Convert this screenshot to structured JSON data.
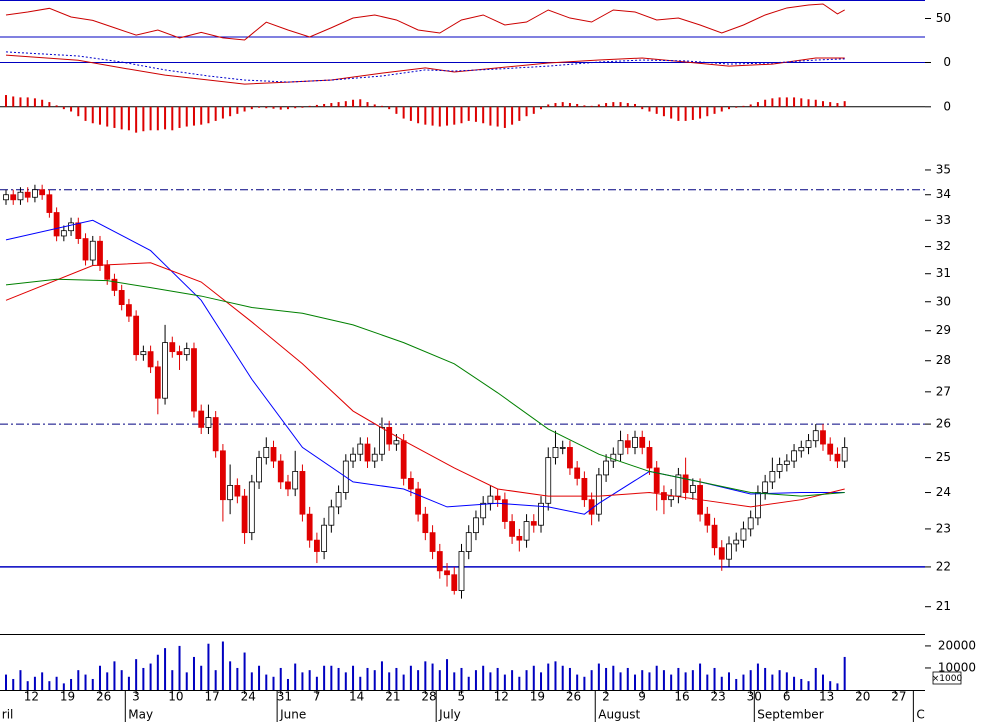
{
  "chart_data": [
    {
      "type": "line",
      "ylim": [
        30,
        70
      ],
      "yticks": [
        50
      ],
      "xlim": [
        -0.83,
        127.11
      ],
      "levels": [
        30,
        70
      ],
      "level_color": "#0000c0",
      "series": [
        {
          "color": "#cc0000",
          "x": [
            0,
            3,
            6,
            9,
            12,
            15,
            18,
            21,
            24,
            27,
            30,
            33,
            36,
            39,
            42,
            45,
            48,
            51,
            54,
            57,
            60,
            63,
            66,
            69,
            72,
            75,
            78,
            81,
            84,
            87,
            90,
            93,
            96,
            99,
            102,
            105,
            108,
            111,
            113,
            115,
            116
          ],
          "values": [
            53.8,
            57,
            61,
            51.6,
            48,
            40,
            32,
            37.6,
            29,
            35,
            29,
            26.8,
            46,
            37.6,
            30,
            40,
            50.5,
            53.8,
            48.4,
            37.6,
            34.3,
            48.4,
            53.8,
            43,
            46.2,
            59.2,
            50.5,
            46.2,
            59.2,
            57,
            48.4,
            50.5,
            43,
            34.3,
            43,
            53.8,
            61.4,
            64.6,
            65.7,
            54.9,
            59.2
          ]
        }
      ]
    },
    {
      "type": "line",
      "ylim": [
        -1,
        1
      ],
      "yticks": [
        0
      ],
      "xlim": [
        -0.83,
        127.11
      ],
      "grid": true,
      "grid_color": "#0000c0",
      "series": [
        {
          "color": "#cc0000",
          "dash": "solid",
          "x": [
            0,
            10,
            16,
            22,
            28,
            33,
            39,
            45,
            52,
            58,
            62,
            68,
            75,
            82,
            88,
            94,
            100,
            106,
            112,
            116
          ],
          "values": [
            0.33,
            0.1,
            -0.24,
            -0.56,
            -0.78,
            -0.96,
            -0.87,
            -0.78,
            -0.47,
            -0.24,
            -0.42,
            -0.24,
            -0.02,
            0.11,
            0.2,
            0.02,
            -0.16,
            -0.07,
            0.2,
            0.2
          ]
        },
        {
          "color": "#0000cc",
          "dash": "dotted",
          "x": [
            0,
            10,
            16,
            22,
            28,
            33,
            39,
            45,
            52,
            58,
            62,
            68,
            75,
            82,
            88,
            94,
            100,
            106,
            112,
            116
          ],
          "values": [
            0.47,
            0.29,
            0.02,
            -0.33,
            -0.6,
            -0.78,
            -0.87,
            -0.78,
            -0.6,
            -0.33,
            -0.38,
            -0.29,
            -0.16,
            0.02,
            0.11,
            0.07,
            -0.07,
            -0.02,
            0.11,
            0.16
          ]
        }
      ]
    },
    {
      "type": "bar",
      "ylim": [
        -0.6,
        0.4
      ],
      "yticks": [
        0
      ],
      "xlim": [
        -0.83,
        127.11
      ],
      "grid": true,
      "grid_color": "#000000",
      "color": "#dd0000",
      "values": [
        0.25,
        0.22,
        0.2,
        0.2,
        0.18,
        0.15,
        0.1,
        0.03,
        -0.05,
        -0.1,
        -0.2,
        -0.3,
        -0.35,
        -0.38,
        -0.42,
        -0.45,
        -0.48,
        -0.5,
        -0.55,
        -0.52,
        -0.5,
        -0.5,
        -0.48,
        -0.5,
        -0.45,
        -0.42,
        -0.4,
        -0.38,
        -0.35,
        -0.3,
        -0.25,
        -0.2,
        -0.15,
        -0.1,
        -0.05,
        -0.02,
        -0.03,
        -0.04,
        -0.06,
        -0.05,
        -0.03,
        -0.02,
        0.02,
        0.04,
        0.06,
        0.08,
        0.1,
        0.12,
        0.15,
        0.16,
        0.1,
        0.05,
        0.02,
        -0.05,
        -0.15,
        -0.25,
        -0.3,
        -0.35,
        -0.38,
        -0.4,
        -0.42,
        -0.4,
        -0.38,
        -0.35,
        -0.3,
        -0.32,
        -0.35,
        -0.4,
        -0.42,
        -0.45,
        -0.38,
        -0.3,
        -0.2,
        -0.15,
        -0.05,
        0.05,
        0.08,
        0.1,
        0.08,
        0.06,
        0.03,
        0.02,
        0.05,
        0.08,
        0.1,
        0.1,
        0.08,
        0.06,
        -0.05,
        -0.1,
        -0.15,
        -0.2,
        -0.25,
        -0.3,
        -0.3,
        -0.28,
        -0.25,
        -0.2,
        -0.15,
        -0.1,
        -0.05,
        -0.02,
        0.02,
        0.05,
        0.1,
        0.15,
        0.18,
        0.2,
        0.2,
        0.2,
        0.18,
        0.16,
        0.15,
        0.12,
        0.1,
        0.08,
        0.12
      ]
    },
    {
      "type": "candlestick",
      "log_scale": true,
      "ylim": [
        20.34,
        35.41
      ],
      "yticks": [
        21,
        22,
        23,
        24,
        25,
        26,
        27,
        28,
        29,
        30,
        31,
        32,
        33,
        34,
        35
      ],
      "xlim": [
        -0.83,
        127.11
      ],
      "up_color": "#ffffff",
      "down_color": "#e00000",
      "open": [
        33.8,
        34.0,
        33.8,
        34.1,
        33.9,
        34.2,
        34.0,
        33.3,
        32.4,
        32.6,
        32.9,
        32.3,
        31.5,
        32.2,
        31.3,
        30.8,
        30.4,
        29.9,
        29.5,
        28.2,
        28.3,
        27.8,
        26.8,
        28.6,
        28.3,
        28.2,
        28.4,
        26.4,
        25.9,
        26.2,
        25.2,
        23.8,
        24.2,
        23.9,
        22.9,
        24.3,
        25.0,
        25.3,
        24.9,
        24.3,
        24.1,
        24.6,
        23.4,
        22.7,
        22.4,
        23.1,
        23.6,
        24.0,
        24.9,
        25.1,
        25.4,
        24.9,
        25.1,
        25.9,
        25.4,
        25.5,
        24.4,
        24.1,
        23.4,
        22.9,
        22.4,
        21.9,
        21.8,
        21.4,
        22.4,
        22.9,
        23.3,
        23.7,
        23.9,
        23.8,
        23.2,
        22.8,
        22.7,
        23.2,
        23.1,
        23.7,
        25.0,
        25.3,
        25.3,
        24.7,
        24.4,
        23.8,
        23.4,
        24.5,
        24.9,
        25.1,
        25.5,
        25.3,
        25.6,
        25.3,
        24.7,
        24.0,
        23.8,
        23.9,
        24.5,
        24.0,
        24.2,
        23.4,
        23.1,
        22.5,
        22.2,
        22.6,
        22.7,
        23.0,
        23.3,
        24.0,
        24.3,
        24.6,
        24.8,
        24.9,
        25.2,
        25.3,
        25.5,
        25.8,
        25.4,
        25.1,
        24.9
      ],
      "high": [
        34.2,
        34.2,
        34.3,
        34.3,
        34.4,
        34.4,
        34.2,
        33.5,
        32.8,
        33.1,
        33.1,
        32.5,
        32.4,
        32.4,
        31.5,
        31.0,
        30.6,
        30.1,
        29.7,
        28.5,
        28.5,
        28.0,
        29.2,
        28.8,
        28.5,
        28.6,
        28.6,
        26.6,
        26.6,
        26.4,
        25.4,
        24.8,
        24.4,
        24.1,
        24.5,
        25.2,
        25.6,
        25.5,
        25.1,
        24.5,
        25.2,
        24.8,
        23.6,
        22.9,
        23.3,
        23.8,
        24.2,
        25.1,
        25.3,
        25.6,
        25.6,
        25.3,
        26.2,
        26.1,
        25.7,
        25.7,
        24.6,
        24.3,
        23.6,
        23.1,
        22.6,
        22.1,
        22.0,
        22.6,
        23.1,
        23.5,
        23.9,
        24.2,
        24.1,
        24.0,
        23.4,
        23.0,
        23.4,
        23.4,
        23.9,
        25.3,
        25.8,
        25.5,
        25.5,
        24.9,
        24.6,
        24.0,
        24.7,
        25.1,
        25.3,
        25.8,
        25.7,
        25.8,
        25.8,
        25.5,
        24.9,
        24.2,
        24.1,
        24.7,
        25.0,
        24.4,
        24.4,
        23.6,
        23.3,
        22.7,
        22.8,
        22.9,
        23.2,
        23.5,
        24.2,
        24.5,
        25.0,
        25.0,
        25.1,
        25.4,
        25.5,
        25.7,
        26.0,
        26.0,
        25.6,
        25.3,
        25.6
      ],
      "low": [
        33.6,
        33.6,
        33.6,
        33.7,
        33.7,
        33.8,
        33.1,
        32.2,
        32.2,
        32.4,
        32.1,
        31.3,
        31.3,
        31.1,
        30.6,
        30.2,
        29.7,
        29.3,
        28.0,
        28.0,
        27.6,
        26.3,
        26.6,
        28.1,
        27.7,
        28.0,
        26.2,
        25.7,
        25.7,
        25.0,
        23.2,
        23.4,
        23.7,
        22.6,
        22.7,
        24.1,
        24.8,
        24.7,
        24.1,
        23.9,
        23.9,
        23.2,
        22.5,
        22.1,
        22.2,
        22.9,
        23.4,
        23.8,
        24.7,
        24.9,
        24.7,
        24.7,
        24.9,
        25.2,
        25.2,
        24.2,
        23.9,
        23.2,
        22.7,
        22.2,
        21.7,
        21.5,
        21.3,
        21.2,
        22.2,
        22.7,
        23.1,
        23.5,
        23.6,
        23.0,
        22.6,
        22.4,
        22.5,
        22.9,
        22.9,
        23.5,
        24.8,
        25.1,
        24.5,
        24.2,
        23.6,
        23.1,
        23.2,
        24.3,
        24.7,
        24.9,
        25.1,
        25.1,
        25.1,
        24.5,
        23.5,
        23.4,
        23.6,
        23.7,
        23.8,
        23.8,
        23.2,
        22.9,
        22.3,
        21.9,
        22.0,
        22.4,
        22.5,
        22.8,
        23.1,
        23.8,
        24.1,
        24.4,
        24.6,
        24.7,
        25.0,
        25.1,
        25.3,
        25.2,
        24.9,
        24.7,
        24.7
      ],
      "close": [
        34.0,
        33.8,
        34.1,
        33.9,
        34.2,
        34.0,
        33.3,
        32.4,
        32.6,
        32.9,
        32.3,
        31.5,
        32.2,
        31.3,
        30.8,
        30.4,
        29.9,
        29.5,
        28.2,
        28.3,
        27.8,
        26.8,
        28.6,
        28.3,
        28.2,
        28.4,
        26.4,
        25.9,
        26.2,
        25.2,
        23.8,
        24.2,
        23.9,
        22.9,
        24.3,
        25.0,
        25.3,
        24.9,
        24.3,
        24.1,
        24.6,
        23.4,
        22.7,
        22.4,
        23.1,
        23.6,
        24.0,
        24.9,
        25.1,
        25.4,
        24.9,
        25.1,
        25.9,
        25.4,
        25.5,
        24.4,
        24.1,
        23.4,
        22.9,
        22.4,
        21.9,
        21.8,
        21.4,
        22.4,
        22.9,
        23.3,
        23.7,
        23.9,
        23.8,
        23.2,
        22.8,
        22.7,
        23.2,
        23.1,
        23.7,
        25.0,
        25.3,
        25.3,
        24.7,
        24.4,
        23.8,
        23.4,
        24.5,
        24.9,
        25.1,
        25.5,
        25.3,
        25.6,
        25.3,
        24.7,
        24.0,
        23.8,
        23.9,
        24.5,
        24.0,
        24.2,
        23.4,
        23.1,
        22.5,
        22.2,
        22.6,
        22.7,
        23.0,
        23.3,
        24.0,
        24.3,
        24.6,
        24.8,
        24.9,
        25.2,
        25.3,
        25.5,
        25.8,
        25.4,
        25.1,
        24.9,
        25.3
      ],
      "series": [
        {
          "color": "#0000ff",
          "x": [
            0,
            12,
            20,
            27,
            34,
            41,
            48,
            55,
            61,
            68,
            75,
            80,
            82,
            89,
            96,
            103,
            110,
            116
          ],
          "values": [
            32.25,
            33.0,
            31.85,
            30.05,
            27.4,
            25.3,
            24.3,
            24.1,
            23.6,
            23.7,
            23.6,
            23.4,
            23.7,
            24.6,
            24.3,
            23.96,
            24.0,
            24.0
          ]
        },
        {
          "color": "#e00000",
          "x": [
            0,
            12,
            20,
            27,
            34,
            41,
            48,
            55,
            62,
            68,
            75,
            82,
            89,
            96,
            103,
            110,
            116
          ],
          "values": [
            30.05,
            31.3,
            31.4,
            30.7,
            29.3,
            27.9,
            26.4,
            25.5,
            24.7,
            24.1,
            23.9,
            23.9,
            24.0,
            23.8,
            23.6,
            23.8,
            24.1
          ]
        },
        {
          "color": "#008000",
          "x": [
            0,
            7,
            14,
            20,
            27,
            34,
            41,
            48,
            55,
            62,
            68,
            75,
            82,
            89,
            96,
            103,
            110,
            116
          ],
          "values": [
            30.6,
            30.8,
            30.75,
            30.5,
            30.2,
            29.8,
            29.6,
            29.2,
            28.6,
            27.9,
            26.97,
            25.85,
            25.1,
            24.6,
            24.3,
            24.0,
            23.9,
            24.0
          ]
        }
      ],
      "hlines": [
        {
          "value": 34.2,
          "style": "dashdot",
          "color": "#000080"
        },
        {
          "value": 26,
          "style": "dashdot",
          "color": "#000080"
        },
        {
          "value": 22,
          "style": "solid",
          "color": "#0000c0"
        }
      ]
    },
    {
      "type": "bar",
      "ylim": [
        0,
        24500
      ],
      "yticks": [
        10000,
        20000
      ],
      "xlim": [
        -0.83,
        127.11
      ],
      "color": "#0000c0",
      "unit_label": "×1000",
      "values": [
        7000,
        5000,
        9000,
        4000,
        6000,
        8000,
        4000,
        6000,
        3000,
        5000,
        9000,
        7000,
        5000,
        11000,
        8000,
        13000,
        9000,
        6000,
        14000,
        10000,
        12000,
        16000,
        19000,
        9000,
        20000,
        8000,
        15000,
        11000,
        21000,
        9000,
        22000,
        13000,
        10000,
        17000,
        8000,
        11000,
        7000,
        6000,
        10000,
        5000,
        12000,
        8000,
        9000,
        6000,
        11000,
        11000,
        10000,
        8000,
        11000,
        6000,
        10000,
        9000,
        13000,
        8000,
        10000,
        7000,
        11000,
        9000,
        13000,
        12000,
        9000,
        14000,
        8000,
        10000,
        6000,
        9000,
        11000,
        8000,
        10000,
        7000,
        9000,
        6000,
        9000,
        11000,
        8000,
        12000,
        13000,
        11000,
        10000,
        7000,
        6000,
        9000,
        12000,
        10000,
        11000,
        8000,
        10000,
        7000,
        9000,
        8000,
        11000,
        9000,
        7000,
        10000,
        8000,
        9000,
        12000,
        7000,
        10000,
        6000,
        8000,
        5000,
        7000,
        9000,
        12000,
        10000,
        7000,
        9000,
        8000,
        6000,
        5000,
        4000,
        10000,
        7000,
        4000,
        3000,
        15000
      ],
      "xticks": [
        {
          "value": 3,
          "label": "12"
        },
        {
          "value": 8,
          "label": "19"
        },
        {
          "value": 13,
          "label": "26"
        },
        {
          "value": 18,
          "label": "3"
        },
        {
          "value": 23,
          "label": "10"
        },
        {
          "value": 28,
          "label": "17"
        },
        {
          "value": 33,
          "label": "24"
        },
        {
          "value": 38,
          "label": "31"
        },
        {
          "value": 43,
          "label": "7"
        },
        {
          "value": 48,
          "label": "14"
        },
        {
          "value": 53,
          "label": "21"
        },
        {
          "value": 58,
          "label": "28"
        },
        {
          "value": 63,
          "label": "5"
        },
        {
          "value": 68,
          "label": "12"
        },
        {
          "value": 73,
          "label": "19"
        },
        {
          "value": 78,
          "label": "26"
        },
        {
          "value": 83,
          "label": "2"
        },
        {
          "value": 88,
          "label": "9"
        },
        {
          "value": 93,
          "label": "16"
        },
        {
          "value": 98,
          "label": "23"
        },
        {
          "value": 103,
          "label": "30"
        },
        {
          "value": 108,
          "label": "6"
        },
        {
          "value": 113,
          "label": "13"
        },
        {
          "value": 118,
          "label": "20"
        },
        {
          "value": 123,
          "label": "27"
        }
      ],
      "months": [
        {
          "value": -1,
          "label": "ril"
        },
        {
          "value": 16.5,
          "label": "May"
        },
        {
          "value": 37.5,
          "label": "June"
        },
        {
          "value": 59.5,
          "label": "July"
        },
        {
          "value": 81.5,
          "label": "August"
        },
        {
          "value": 103.5,
          "label": "September"
        },
        {
          "value": 125.5,
          "label": "C"
        }
      ]
    }
  ]
}
